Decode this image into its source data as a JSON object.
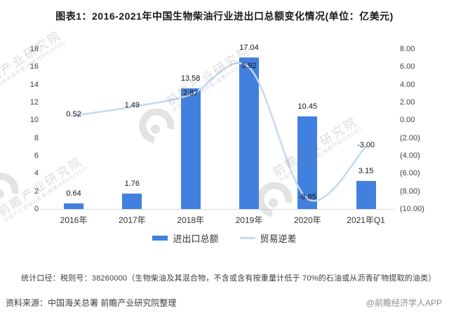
{
  "chart_data": {
    "type": "bar",
    "title": "图表1：2016-2021年中国生物柴油行业进出口总额变化情况(单位：亿美元)",
    "categories": [
      "2016年",
      "2017年",
      "2018年",
      "2019年",
      "2020年",
      "2021年Q1"
    ],
    "series": [
      {
        "name": "进出口总额",
        "type": "bar",
        "axis": "left",
        "values": [
          0.64,
          1.76,
          13.58,
          17.04,
          10.45,
          3.15
        ]
      },
      {
        "name": "贸易逆差",
        "type": "line",
        "axis": "right",
        "values": [
          0.52,
          1.49,
          2.87,
          5.92,
          -8.85,
          -3.0
        ]
      }
    ],
    "data_labels": {
      "bar": [
        "0.64",
        "1.76",
        "13.58",
        "17.04",
        "10.45",
        "3.15"
      ],
      "line": [
        "0.52",
        "1.49",
        "2.87",
        "5.92",
        "-8.85",
        "-3.00"
      ]
    },
    "left_axis": {
      "min": 0,
      "max": 18,
      "ticks_bottom_to_top": [
        "0",
        "2",
        "4",
        "6",
        "8",
        "10",
        "12",
        "14",
        "16",
        "18"
      ]
    },
    "right_axis": {
      "min": -10,
      "max": 8,
      "ticks_top_to_bottom": [
        "8.00",
        "6.00",
        "4.00",
        "2.00",
        "0.00",
        "(2.00)",
        "(4.00)",
        "(6.00)",
        "(8.00)",
        "(10.00)"
      ]
    },
    "grid": false,
    "legend_position": "bottom"
  },
  "footnote": "统计口径：税则号：38260000（生物柴油及其混合物，不含或含有按重量计低于 70%的石油或从沥青矿物提取的油类）",
  "source": "资料来源：中国海关总署 前瞻产业研究院整理",
  "credit": "@前瞻经济学人APP",
  "watermark": {
    "text": "前瞻产业研究院",
    "subtext": "中国产业咨询领导者(股票代码839599)"
  },
  "colors": {
    "bar": "#4180DF",
    "line": "#C3D8F2",
    "axis_text": "#404040",
    "label_text": "#141414",
    "baseline": "#d9d9d9"
  }
}
